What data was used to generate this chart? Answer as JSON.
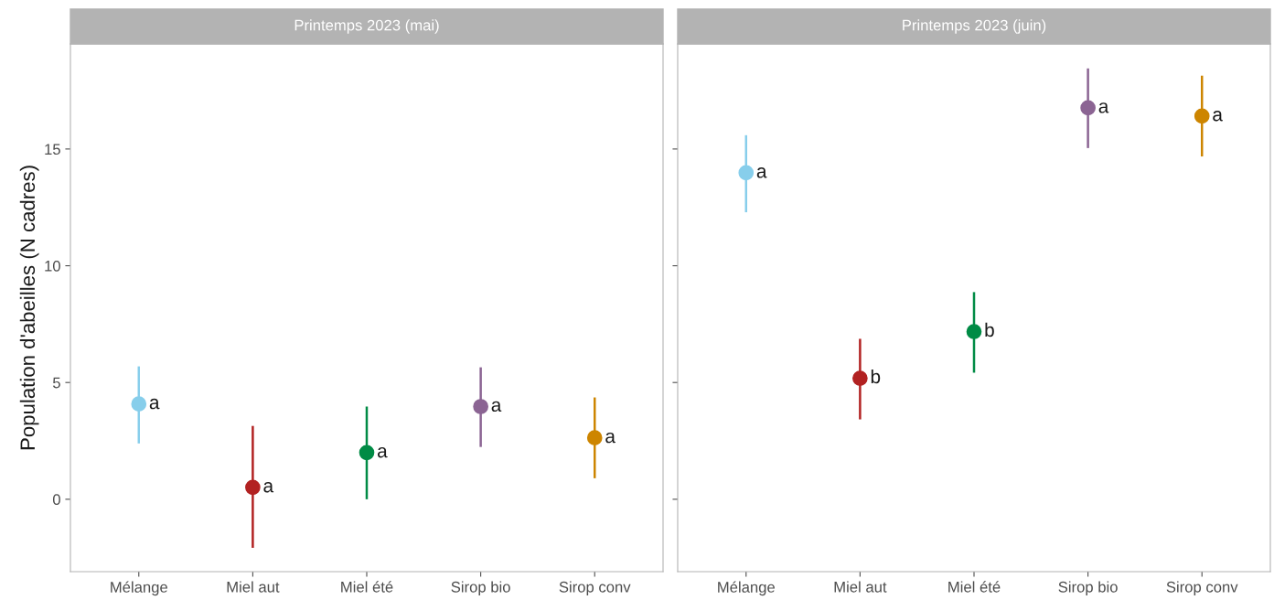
{
  "chart_data": [
    {
      "type": "scatter",
      "title": "Printemps 2023 (mai)",
      "ylabel": "Population d'abeilles (N cadres)",
      "categories": [
        "Mélange",
        "Miel aut",
        "Miel été",
        "Sirop bio",
        "Sirop conv"
      ],
      "values": [
        4.08,
        0.51,
        2.0,
        3.97,
        2.63
      ],
      "errors": [
        [
          2.39,
          5.69
        ],
        [
          -2.08,
          3.14
        ],
        [
          0,
          3.97
        ],
        [
          2.24,
          5.65
        ],
        [
          0.9,
          4.36
        ]
      ],
      "colors": [
        "#87ceeb",
        "#b22222",
        "#008b45",
        "#8b6493",
        "#cd8500"
      ],
      "value_labels": [
        "a",
        "a",
        "a",
        "a",
        "a"
      ],
      "ylim": [
        -3.1,
        19.5
      ],
      "yticks": [
        0,
        5,
        10,
        15
      ],
      "grid": false,
      "marker": "circle"
    },
    {
      "type": "scatter",
      "title": "Printemps 2023 (juin)",
      "categories": [
        "Mélange",
        "Miel aut",
        "Miel été",
        "Sirop bio",
        "Sirop conv"
      ],
      "values": [
        13.98,
        5.18,
        7.18,
        16.76,
        16.41
      ],
      "errors": [
        [
          12.29,
          15.59
        ],
        [
          3.42,
          6.87
        ],
        [
          5.42,
          8.87
        ],
        [
          15.04,
          18.45
        ],
        [
          14.68,
          18.14
        ]
      ],
      "colors": [
        "#87ceeb",
        "#b22222",
        "#008b45",
        "#8b6493",
        "#cd8500"
      ],
      "value_labels": [
        "a",
        "b",
        "b",
        "a",
        "a"
      ],
      "ylim": [
        -3.1,
        19.5
      ],
      "yticks": [
        0,
        5,
        10,
        15
      ],
      "grid": false,
      "marker": "circle",
      "tick_labels": "x"
    }
  ]
}
